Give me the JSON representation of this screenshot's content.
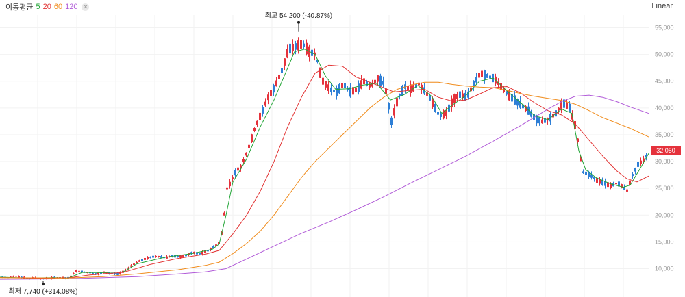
{
  "legend": {
    "title": "이동평균",
    "items": [
      {
        "label": "5",
        "color": "#22a536"
      },
      {
        "label": "20",
        "color": "#e23333"
      },
      {
        "label": "60",
        "color": "#f08c1c"
      },
      {
        "label": "120",
        "color": "#b15bd8"
      }
    ],
    "close_icon": "close-icon"
  },
  "scale_button": "Linear",
  "current_price": "32,050",
  "colors": {
    "up": "#e5323c",
    "down": "#2e7fd6",
    "grid": "#f2f2f2"
  },
  "chart_data": {
    "type": "candlestick",
    "ylim": [
      5000,
      58000
    ],
    "yticks": [
      "10,000",
      "15,000",
      "20,000",
      "25,000",
      "30,000",
      "35,000",
      "40,000",
      "45,000",
      "50,000",
      "55,000"
    ],
    "high_annotation": "최고 54,200 (-40.87%)",
    "low_annotation": "최저 7,740 (+314.08%)",
    "high_value": 54200,
    "low_value": 7740,
    "close_series": [
      [
        0,
        8400
      ],
      [
        10,
        8300
      ],
      [
        20,
        8600
      ],
      [
        30,
        8350
      ],
      [
        40,
        8200
      ],
      [
        50,
        8250
      ],
      [
        60,
        8100
      ],
      [
        70,
        8250
      ],
      [
        80,
        8300
      ],
      [
        90,
        8300
      ],
      [
        100,
        8250
      ],
      [
        110,
        9600
      ],
      [
        120,
        9400
      ],
      [
        130,
        9200
      ],
      [
        140,
        9000
      ],
      [
        150,
        9300
      ],
      [
        160,
        9100
      ],
      [
        170,
        9000
      ],
      [
        180,
        9500
      ],
      [
        190,
        10500
      ],
      [
        200,
        11300
      ],
      [
        210,
        11800
      ],
      [
        220,
        12200
      ],
      [
        230,
        12300
      ],
      [
        240,
        12000
      ],
      [
        250,
        12400
      ],
      [
        260,
        12200
      ],
      [
        270,
        12500
      ],
      [
        280,
        13000
      ],
      [
        290,
        12800
      ],
      [
        300,
        13200
      ],
      [
        310,
        14000
      ],
      [
        320,
        15000
      ],
      [
        325,
        19000
      ],
      [
        330,
        25000
      ],
      [
        335,
        26000
      ],
      [
        340,
        27500
      ],
      [
        345,
        28500
      ],
      [
        350,
        29000
      ],
      [
        360,
        32000
      ],
      [
        370,
        36000
      ],
      [
        380,
        39000
      ],
      [
        390,
        42000
      ],
      [
        400,
        44000
      ],
      [
        410,
        47000
      ],
      [
        420,
        51000
      ],
      [
        430,
        51500
      ],
      [
        440,
        52000
      ],
      [
        450,
        50500
      ],
      [
        460,
        50000
      ],
      [
        465,
        47000
      ],
      [
        470,
        45000
      ],
      [
        480,
        43500
      ],
      [
        490,
        43000
      ],
      [
        500,
        44500
      ],
      [
        510,
        43000
      ],
      [
        520,
        43500
      ],
      [
        530,
        45000
      ],
      [
        540,
        44000
      ],
      [
        550,
        45500
      ],
      [
        560,
        44500
      ],
      [
        570,
        37500
      ],
      [
        580,
        42000
      ],
      [
        590,
        44000
      ],
      [
        600,
        43500
      ],
      [
        610,
        44500
      ],
      [
        620,
        43000
      ],
      [
        630,
        41000
      ],
      [
        640,
        38500
      ],
      [
        650,
        39000
      ],
      [
        660,
        41500
      ],
      [
        670,
        42500
      ],
      [
        680,
        42000
      ],
      [
        690,
        44500
      ],
      [
        700,
        46500
      ],
      [
        710,
        46000
      ],
      [
        720,
        45500
      ],
      [
        730,
        44000
      ],
      [
        740,
        42500
      ],
      [
        750,
        41500
      ],
      [
        760,
        40500
      ],
      [
        770,
        39500
      ],
      [
        780,
        38000
      ],
      [
        790,
        37500
      ],
      [
        800,
        38000
      ],
      [
        810,
        39000
      ],
      [
        820,
        41000
      ],
      [
        830,
        40000
      ],
      [
        840,
        36000
      ],
      [
        845,
        31000
      ],
      [
        850,
        28000
      ],
      [
        860,
        27500
      ],
      [
        870,
        26500
      ],
      [
        880,
        26000
      ],
      [
        890,
        25500
      ],
      [
        900,
        26000
      ],
      [
        910,
        25000
      ],
      [
        915,
        24500
      ],
      [
        920,
        27000
      ],
      [
        930,
        29500
      ],
      [
        940,
        30500
      ],
      [
        947,
        32050
      ]
    ],
    "ma_series": [
      {
        "name": "5",
        "color": "#22a536",
        "points": [
          [
            0,
            8400
          ],
          [
            40,
            8250
          ],
          [
            80,
            8300
          ],
          [
            100,
            8250
          ],
          [
            120,
            9300
          ],
          [
            150,
            9250
          ],
          [
            180,
            9400
          ],
          [
            200,
            10900
          ],
          [
            240,
            12100
          ],
          [
            280,
            12800
          ],
          [
            310,
            13600
          ],
          [
            320,
            14600
          ],
          [
            330,
            20000
          ],
          [
            340,
            26200
          ],
          [
            350,
            28300
          ],
          [
            360,
            30500
          ],
          [
            380,
            36500
          ],
          [
            400,
            41500
          ],
          [
            420,
            47500
          ],
          [
            430,
            50500
          ],
          [
            445,
            51000
          ],
          [
            460,
            50000
          ],
          [
            475,
            46000
          ],
          [
            490,
            43500
          ],
          [
            510,
            43600
          ],
          [
            530,
            44300
          ],
          [
            550,
            44600
          ],
          [
            570,
            41500
          ],
          [
            590,
            42500
          ],
          [
            610,
            44200
          ],
          [
            630,
            42200
          ],
          [
            645,
            39000
          ],
          [
            660,
            40500
          ],
          [
            680,
            42300
          ],
          [
            700,
            45000
          ],
          [
            720,
            45600
          ],
          [
            740,
            43200
          ],
          [
            760,
            41000
          ],
          [
            780,
            38600
          ],
          [
            800,
            37800
          ],
          [
            820,
            39800
          ],
          [
            835,
            39000
          ],
          [
            845,
            32000
          ],
          [
            855,
            28500
          ],
          [
            870,
            27000
          ],
          [
            890,
            25900
          ],
          [
            910,
            25200
          ],
          [
            920,
            25600
          ],
          [
            935,
            28800
          ],
          [
            947,
            31500
          ]
        ]
      },
      {
        "name": "20",
        "color": "#e23333",
        "points": [
          [
            0,
            8300
          ],
          [
            60,
            8200
          ],
          [
            100,
            8260
          ],
          [
            130,
            8800
          ],
          [
            180,
            9300
          ],
          [
            220,
            10800
          ],
          [
            260,
            11900
          ],
          [
            300,
            12700
          ],
          [
            320,
            13400
          ],
          [
            340,
            16500
          ],
          [
            360,
            20000
          ],
          [
            380,
            24500
          ],
          [
            400,
            30000
          ],
          [
            420,
            36500
          ],
          [
            440,
            42000
          ],
          [
            460,
            46500
          ],
          [
            480,
            48000
          ],
          [
            500,
            47800
          ],
          [
            520,
            45800
          ],
          [
            550,
            44300
          ],
          [
            575,
            43000
          ],
          [
            600,
            43300
          ],
          [
            620,
            43500
          ],
          [
            640,
            42000
          ],
          [
            660,
            41300
          ],
          [
            680,
            41500
          ],
          [
            700,
            42600
          ],
          [
            720,
            43800
          ],
          [
            740,
            44000
          ],
          [
            760,
            42800
          ],
          [
            780,
            41000
          ],
          [
            800,
            39500
          ],
          [
            820,
            38700
          ],
          [
            840,
            37000
          ],
          [
            860,
            34000
          ],
          [
            880,
            31000
          ],
          [
            900,
            28300
          ],
          [
            915,
            26800
          ],
          [
            930,
            26200
          ],
          [
            947,
            27300
          ]
        ]
      },
      {
        "name": "60",
        "color": "#f08c1c",
        "points": [
          [
            0,
            8300
          ],
          [
            100,
            8250
          ],
          [
            150,
            8500
          ],
          [
            200,
            9000
          ],
          [
            260,
            9800
          ],
          [
            300,
            10600
          ],
          [
            320,
            11200
          ],
          [
            340,
            12800
          ],
          [
            360,
            14700
          ],
          [
            380,
            17000
          ],
          [
            400,
            20000
          ],
          [
            420,
            23500
          ],
          [
            440,
            27000
          ],
          [
            460,
            30000
          ],
          [
            480,
            32500
          ],
          [
            500,
            35000
          ],
          [
            520,
            37500
          ],
          [
            540,
            40000
          ],
          [
            560,
            42000
          ],
          [
            580,
            43500
          ],
          [
            600,
            44300
          ],
          [
            620,
            44800
          ],
          [
            640,
            44800
          ],
          [
            660,
            44400
          ],
          [
            680,
            44100
          ],
          [
            700,
            43900
          ],
          [
            720,
            43800
          ],
          [
            740,
            43300
          ],
          [
            760,
            42700
          ],
          [
            780,
            42200
          ],
          [
            800,
            41800
          ],
          [
            820,
            41400
          ],
          [
            840,
            40700
          ],
          [
            860,
            39500
          ],
          [
            880,
            38200
          ],
          [
            900,
            37200
          ],
          [
            920,
            36200
          ],
          [
            947,
            34600
          ]
        ]
      },
      {
        "name": "120",
        "color": "#b15bd8",
        "points": [
          [
            0,
            8000
          ],
          [
            100,
            8100
          ],
          [
            200,
            8500
          ],
          [
            260,
            9000
          ],
          [
            300,
            9400
          ],
          [
            330,
            10000
          ],
          [
            360,
            11800
          ],
          [
            400,
            14200
          ],
          [
            440,
            16600
          ],
          [
            480,
            18700
          ],
          [
            520,
            21000
          ],
          [
            560,
            23400
          ],
          [
            600,
            26000
          ],
          [
            640,
            28500
          ],
          [
            680,
            31000
          ],
          [
            720,
            33800
          ],
          [
            760,
            36700
          ],
          [
            800,
            39800
          ],
          [
            820,
            41200
          ],
          [
            840,
            42200
          ],
          [
            860,
            42400
          ],
          [
            880,
            42000
          ],
          [
            900,
            41200
          ],
          [
            920,
            40200
          ],
          [
            947,
            39000
          ]
        ]
      }
    ]
  }
}
